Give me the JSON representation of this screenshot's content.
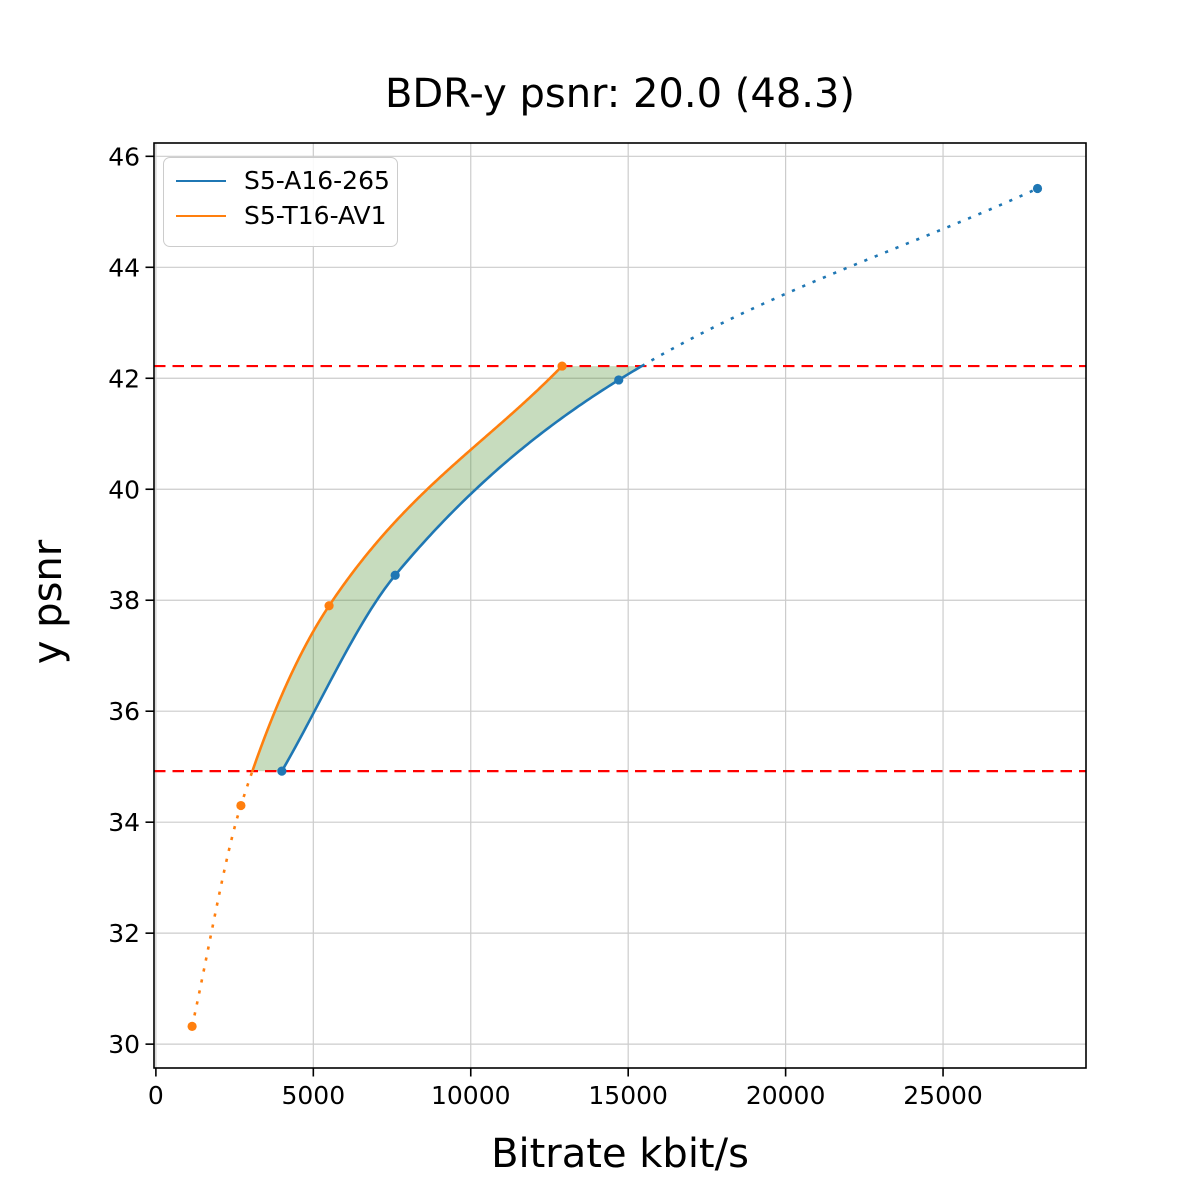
{
  "figure": {
    "background": "#ffffff"
  },
  "chart_data": {
    "type": "line",
    "title": "BDR-y psnr: 20.0 (48.3)",
    "xlabel": "Bitrate kbit/s",
    "ylabel": "y psnr",
    "xlim": [
      -60,
      29540
    ],
    "ylim": [
      29.57,
      46.24
    ],
    "xticks": [
      0,
      5000,
      10000,
      15000,
      20000,
      25000
    ],
    "xtick_labels": [
      "0",
      "5000",
      "10000",
      "15000",
      "20000",
      "25000"
    ],
    "yticks": [
      30,
      32,
      34,
      36,
      38,
      40,
      42,
      44,
      46
    ],
    "ytick_labels": [
      "30",
      "32",
      "34",
      "36",
      "38",
      "40",
      "42",
      "44",
      "46"
    ],
    "grid": true,
    "grid_color": "#cccccc",
    "spine_color": "#000000",
    "legend": {
      "position": "upper-left",
      "entries": [
        "S5-A16-265",
        "S5-T16-AV1"
      ]
    },
    "series": [
      {
        "name": "S5-A16-265",
        "color": "#1f77b4",
        "marker": "circle",
        "x": [
          4000,
          7600,
          14700,
          28000
        ],
        "y": [
          34.92,
          38.45,
          41.97,
          45.42
        ],
        "line_style": "solid inside overlap band, dotted outside"
      },
      {
        "name": "S5-T16-AV1",
        "color": "#ff7f0e",
        "marker": "circle",
        "x": [
          1150,
          2700,
          5500,
          12900
        ],
        "y": [
          30.32,
          34.3,
          37.9,
          42.22
        ],
        "line_style": "solid inside overlap band, dotted outside"
      }
    ],
    "overlap_band": {
      "y_lower": 34.92,
      "y_upper": 42.22,
      "line_color": "#ff0000",
      "line_style": "dashed"
    },
    "shaded_region": {
      "fill_color": "rgba(70,140,40,0.30)",
      "description": "area between the two interpolated curves within the overlap band"
    }
  }
}
